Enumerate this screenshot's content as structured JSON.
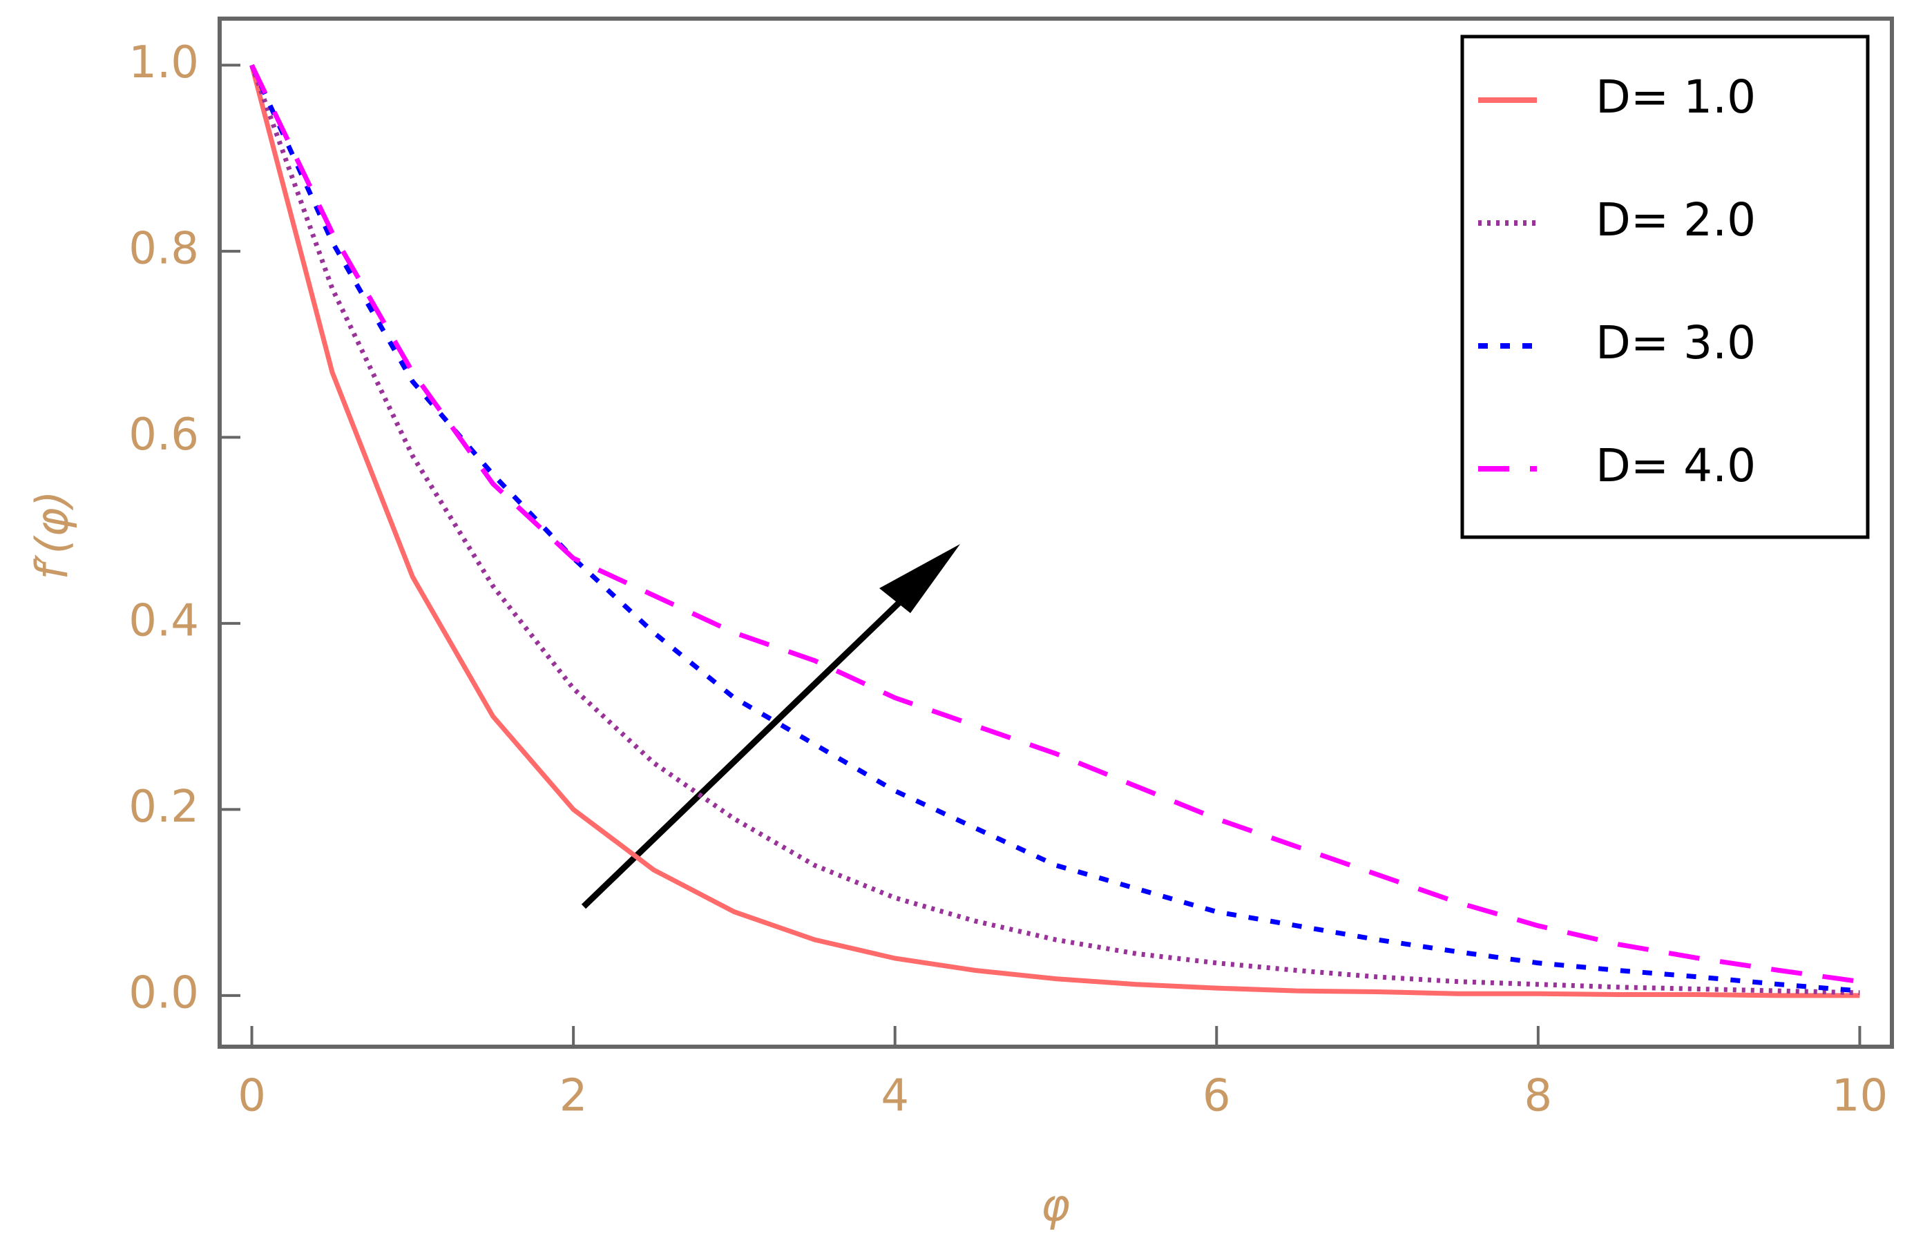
{
  "chart_data": {
    "type": "line",
    "x_label": "φ",
    "y_label": "f′(φ)",
    "x": [
      0,
      0.5,
      1,
      1.5,
      2,
      2.5,
      3,
      3.5,
      4,
      4.5,
      5,
      5.5,
      6,
      6.5,
      7,
      7.5,
      8,
      8.5,
      9,
      9.5,
      10
    ],
    "series": [
      {
        "name": "D= 1.0",
        "color": "#ff6b6b",
        "dash": "solid",
        "values": [
          1,
          0.67,
          0.45,
          0.3,
          0.2,
          0.135,
          0.09,
          0.06,
          0.04,
          0.027,
          0.018,
          0.012,
          0.008,
          0.005,
          0.004,
          0.002,
          0.002,
          0.001,
          0.001,
          0,
          0
        ]
      },
      {
        "name": "D= 2.0",
        "color": "#993399",
        "dash": "dotted",
        "values": [
          1,
          0.76,
          0.58,
          0.44,
          0.33,
          0.25,
          0.19,
          0.14,
          0.105,
          0.08,
          0.06,
          0.045,
          0.035,
          0.027,
          0.02,
          0.015,
          0.012,
          0.009,
          0.007,
          0.005,
          0.003
        ]
      },
      {
        "name": "D= 3.0",
        "color": "#0000ff",
        "dash": "short-dash",
        "values": [
          1,
          0.81,
          0.66,
          0.56,
          0.47,
          0.39,
          0.32,
          0.27,
          0.22,
          0.18,
          0.14,
          0.115,
          0.09,
          0.075,
          0.06,
          0.047,
          0.035,
          0.027,
          0.02,
          0.012,
          0.005
        ]
      },
      {
        "name": "D= 4.0",
        "color": "#ff00ff",
        "dash": "long-dash",
        "values": [
          1,
          0.82,
          0.67,
          0.55,
          0.47,
          0.43,
          0.39,
          0.36,
          0.32,
          0.29,
          0.26,
          0.225,
          0.19,
          0.16,
          0.13,
          0.1,
          0.075,
          0.055,
          0.04,
          0.027,
          0.015
        ]
      }
    ],
    "xlim": [
      -0.2,
      10.2
    ],
    "ylim": [
      -0.055,
      1.05
    ],
    "xticks": [
      0,
      2,
      4,
      6,
      8,
      10
    ],
    "yticks": [
      {
        "value": 0,
        "label": "0.0"
      },
      {
        "value": 0.2,
        "label": "0.2"
      },
      {
        "value": 0.4,
        "label": "0.4"
      },
      {
        "value": 0.6,
        "label": "0.6"
      },
      {
        "value": 0.8,
        "label": "0.8"
      },
      {
        "value": 1,
        "label": "1.0"
      }
    ],
    "grid": false,
    "legend": "upper right"
  }
}
